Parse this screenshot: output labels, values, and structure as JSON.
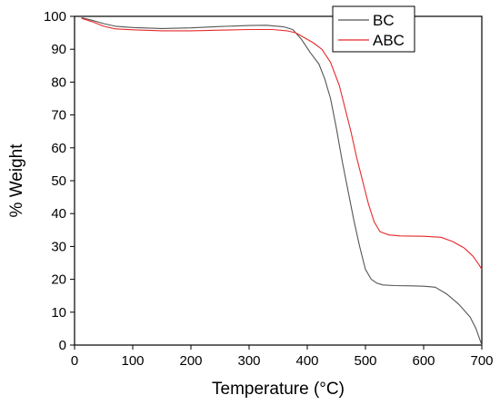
{
  "chart_data": {
    "type": "line",
    "title": "",
    "xlabel": "Temperature (°C)",
    "ylabel": "% Weight",
    "xlim": [
      0,
      700
    ],
    "ylim": [
      0,
      100
    ],
    "xticks": [
      0,
      100,
      200,
      300,
      400,
      500,
      600,
      700
    ],
    "yticks": [
      0,
      10,
      20,
      30,
      40,
      50,
      60,
      70,
      80,
      90,
      100
    ],
    "grid": false,
    "legend_position": "top-right",
    "series": [
      {
        "name": "BC",
        "color": "#555555",
        "points": [
          [
            12,
            99.6
          ],
          [
            30,
            98.8
          ],
          [
            50,
            97.8
          ],
          [
            70,
            97.0
          ],
          [
            100,
            96.6
          ],
          [
            150,
            96.3
          ],
          [
            200,
            96.5
          ],
          [
            250,
            96.9
          ],
          [
            300,
            97.2
          ],
          [
            330,
            97.3
          ],
          [
            360,
            96.8
          ],
          [
            375,
            96.0
          ],
          [
            390,
            93.0
          ],
          [
            405,
            89.0
          ],
          [
            420,
            85.5
          ],
          [
            430,
            81.0
          ],
          [
            440,
            75.0
          ],
          [
            450,
            66.0
          ],
          [
            460,
            56.0
          ],
          [
            470,
            47.0
          ],
          [
            480,
            38.0
          ],
          [
            490,
            30.0
          ],
          [
            500,
            23.0
          ],
          [
            510,
            20.0
          ],
          [
            520,
            18.8
          ],
          [
            530,
            18.3
          ],
          [
            550,
            18.1
          ],
          [
            580,
            18.0
          ],
          [
            600,
            17.9
          ],
          [
            620,
            17.6
          ],
          [
            640,
            15.5
          ],
          [
            660,
            12.5
          ],
          [
            680,
            8.5
          ],
          [
            690,
            5.0
          ],
          [
            700,
            0.0
          ]
        ]
      },
      {
        "name": "ABC",
        "color": "#e8292b",
        "points": [
          [
            12,
            99.4
          ],
          [
            30,
            98.4
          ],
          [
            50,
            97.0
          ],
          [
            70,
            96.2
          ],
          [
            100,
            95.9
          ],
          [
            150,
            95.6
          ],
          [
            200,
            95.6
          ],
          [
            250,
            95.8
          ],
          [
            300,
            96.0
          ],
          [
            340,
            96.0
          ],
          [
            365,
            95.6
          ],
          [
            380,
            95.0
          ],
          [
            395,
            93.5
          ],
          [
            410,
            92.0
          ],
          [
            425,
            90.0
          ],
          [
            440,
            86.0
          ],
          [
            455,
            79.0
          ],
          [
            465,
            72.0
          ],
          [
            475,
            65.0
          ],
          [
            485,
            57.0
          ],
          [
            495,
            50.0
          ],
          [
            505,
            43.0
          ],
          [
            515,
            37.5
          ],
          [
            525,
            34.5
          ],
          [
            540,
            33.5
          ],
          [
            560,
            33.2
          ],
          [
            600,
            33.1
          ],
          [
            630,
            32.8
          ],
          [
            650,
            31.5
          ],
          [
            670,
            29.5
          ],
          [
            685,
            27.0
          ],
          [
            695,
            24.5
          ],
          [
            700,
            23.0
          ]
        ]
      }
    ]
  }
}
